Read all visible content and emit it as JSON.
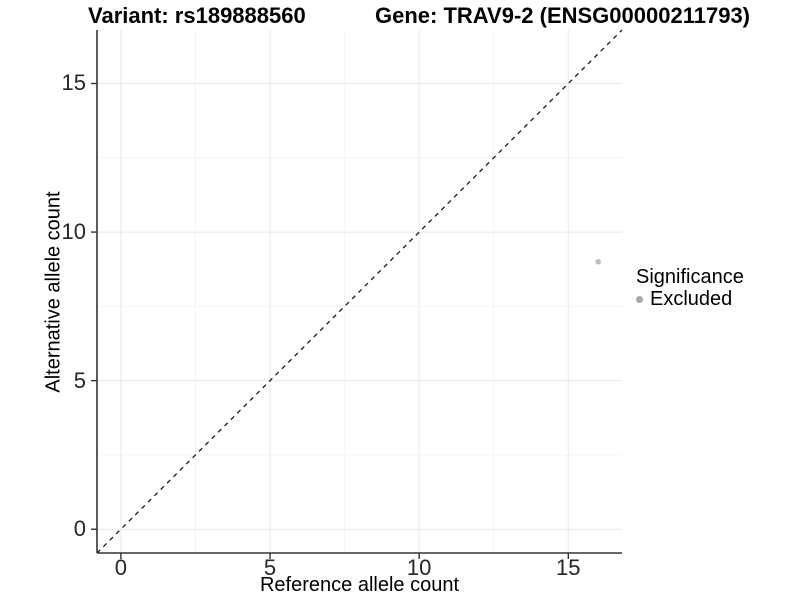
{
  "header": {
    "title_variant": "Variant: rs189888560",
    "title_gene": "Gene: TRAV9-2 (ENSG00000211793)"
  },
  "chart_data": {
    "type": "scatter",
    "title": "Variant: rs189888560 / Gene: TRAV9-2 (ENSG00000211793)",
    "xlabel": "Reference allele count",
    "ylabel": "Alternative allele count",
    "xlim": [
      -0.8,
      16.8
    ],
    "ylim": [
      -0.8,
      16.8
    ],
    "x_ticks": [
      0,
      5,
      10,
      15
    ],
    "y_ticks": [
      0,
      5,
      10,
      15
    ],
    "x_minor_gridlines": [
      2.5,
      7.5,
      12.5
    ],
    "y_minor_gridlines": [
      2.5,
      7.5,
      12.5
    ],
    "grid": true,
    "series": [
      {
        "name": "Excluded",
        "color": "#bdbdbd",
        "points": [
          {
            "x": 16,
            "y": 9
          }
        ]
      }
    ],
    "reference_line": {
      "type": "identity",
      "style": "dashed",
      "color": "#1a1a1a"
    },
    "legend": {
      "title": "Significance",
      "position": "right",
      "items": [
        {
          "label": "Excluded",
          "color": "#a8a8a8"
        }
      ]
    }
  },
  "colors": {
    "background": "#ffffff",
    "axis_line": "#333333",
    "major_grid": "#e8e8e8",
    "minor_grid": "#f4f4f4",
    "tick_text": "#262626",
    "point": "#bdbdbd"
  }
}
